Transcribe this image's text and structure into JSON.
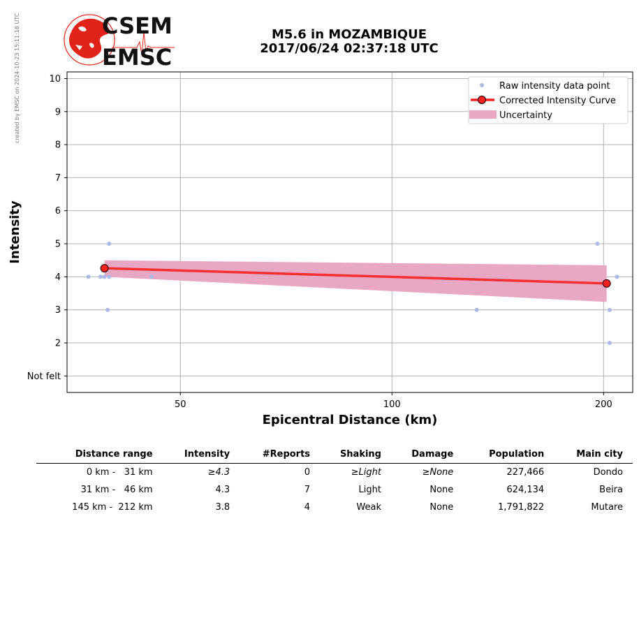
{
  "credit": "created by EMSC on 2024-10-23 15:11:18 UTC",
  "logo": {
    "text_top": "CSEM",
    "text_bottom": "EMSC",
    "color": "#e2231a"
  },
  "title": {
    "line1": "M5.6 in MOZAMBIQUE",
    "line2": "2017/06/24 02:37:18 UTC"
  },
  "chart_data": {
    "type": "scatter",
    "xlabel": "Epicentral Distance (km)",
    "ylabel": "Intensity",
    "x_scale": "log",
    "x_ticks": [
      50,
      100,
      200
    ],
    "y_ticks": [
      1,
      2,
      3,
      4,
      5,
      6,
      7,
      8,
      9,
      10
    ],
    "y_tick_labels": [
      "Not felt",
      "2",
      "3",
      "4",
      "5",
      "6",
      "7",
      "8",
      "9",
      "10"
    ],
    "xlim": [
      34.5,
      220
    ],
    "ylim": [
      0.5,
      10.2
    ],
    "grid": true,
    "legend_position": "top-right",
    "series": [
      {
        "name": "Raw intensity data point",
        "kind": "points",
        "color": "#aab9e8",
        "points": [
          [
            37.0,
            4
          ],
          [
            38.5,
            4
          ],
          [
            39.0,
            4
          ],
          [
            39.6,
            4
          ],
          [
            39.4,
            3
          ],
          [
            39.6,
            5
          ],
          [
            45.5,
            4
          ],
          [
            132,
            3
          ],
          [
            196,
            5
          ],
          [
            204,
            3
          ],
          [
            204,
            2
          ],
          [
            209,
            4
          ]
        ]
      },
      {
        "name": "Corrected Intensity Curve",
        "kind": "line",
        "color": "#ff2020",
        "points": [
          [
            39.0,
            4.26
          ],
          [
            202,
            3.8
          ]
        ]
      },
      {
        "name": "Uncertainty",
        "kind": "band",
        "color": "#e8a8c4",
        "x": [
          39.0,
          202
        ],
        "lower": [
          4.0,
          3.24
        ],
        "upper": [
          4.5,
          4.35
        ]
      }
    ]
  },
  "table": {
    "headers": [
      "Distance range",
      "Intensity",
      "#Reports",
      "Shaking",
      "Damage",
      "Population",
      "Main city"
    ],
    "rows": [
      {
        "range": "0 km -   31 km",
        "intensity": "≥4.3",
        "reports": "0",
        "shaking": "≥Light",
        "damage": "≥None",
        "population": "227,466",
        "city": "Dondo",
        "italic": true
      },
      {
        "range": "31 km -   46 km",
        "intensity": "4.3",
        "reports": "7",
        "shaking": "Light",
        "damage": "None",
        "population": "624,134",
        "city": "Beira",
        "italic": false
      },
      {
        "range": "145 km -  212 km",
        "intensity": "3.8",
        "reports": "4",
        "shaking": "Weak",
        "damage": "None",
        "population": "1,791,822",
        "city": "Mutare",
        "italic": false
      }
    ]
  }
}
